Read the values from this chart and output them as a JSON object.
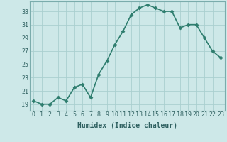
{
  "x": [
    0,
    1,
    2,
    3,
    4,
    5,
    6,
    7,
    8,
    9,
    10,
    11,
    12,
    13,
    14,
    15,
    16,
    17,
    18,
    19,
    20,
    21,
    22,
    23
  ],
  "y": [
    19.5,
    19.0,
    19.0,
    20.0,
    19.5,
    21.5,
    22.0,
    20.0,
    23.5,
    25.5,
    28.0,
    30.0,
    32.5,
    33.5,
    34.0,
    33.5,
    33.0,
    33.0,
    30.5,
    31.0,
    31.0,
    29.0,
    27.0,
    26.0
  ],
  "line_color": "#2e7d6e",
  "marker": "D",
  "markersize": 2.5,
  "linewidth": 1.2,
  "background_color": "#cde8e8",
  "grid_color": "#aacfcf",
  "xlabel": "Humidex (Indice chaleur)",
  "xlim": [
    -0.5,
    23.5
  ],
  "ylim": [
    18.0,
    34.5
  ],
  "yticks": [
    19,
    21,
    23,
    25,
    27,
    29,
    31,
    33
  ],
  "xticks": [
    0,
    1,
    2,
    3,
    4,
    5,
    6,
    7,
    8,
    9,
    10,
    11,
    12,
    13,
    14,
    15,
    16,
    17,
    18,
    19,
    20,
    21,
    22,
    23
  ],
  "xlabel_fontsize": 7,
  "tick_fontsize": 6,
  "tick_color": "#2e6060",
  "spine_color": "#7aacac"
}
